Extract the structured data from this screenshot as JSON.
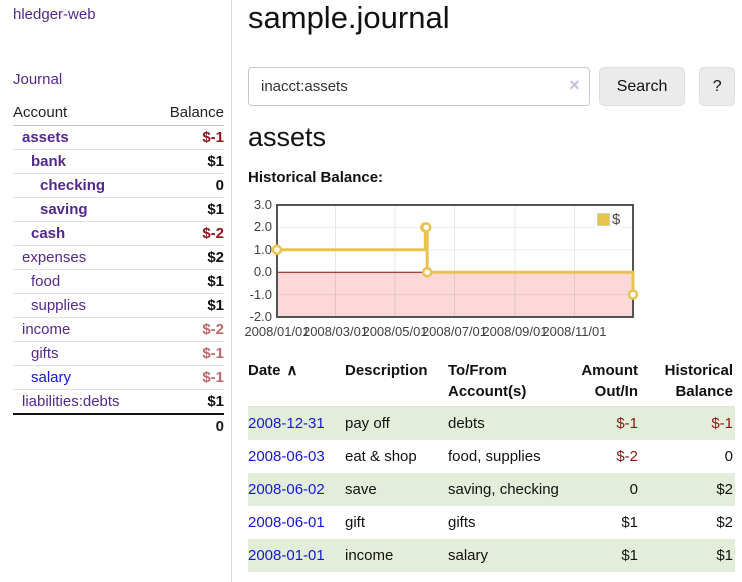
{
  "colors": {
    "link_purple": "#54288c",
    "link_blue": "#1515dd",
    "negative_strong": "#8b1518",
    "negative_soft": "#bb6969",
    "row_highlight_green": "#e2eeda",
    "series_gold": "#e8c350",
    "negative_region_pink": "#fcd8d8",
    "zero_line_red": "#8a1010",
    "chart_border_gray": "#545454"
  },
  "sidebar": {
    "brand": "hledger-web",
    "journal_link": "Journal",
    "accounts": {
      "col_account": "Account",
      "col_balance": "Balance",
      "rows": [
        {
          "name": "assets",
          "depth": 1,
          "bold": true,
          "blue": false,
          "balance": "$-1",
          "neg": "strong"
        },
        {
          "name": "bank",
          "depth": 2,
          "bold": true,
          "blue": false,
          "balance": "$1",
          "neg": null
        },
        {
          "name": "checking",
          "depth": 3,
          "bold": true,
          "blue": false,
          "balance": "0",
          "neg": null
        },
        {
          "name": "saving",
          "depth": 3,
          "bold": true,
          "blue": false,
          "balance": "$1",
          "neg": null
        },
        {
          "name": "cash",
          "depth": 2,
          "bold": true,
          "blue": false,
          "balance": "$-2",
          "neg": "strong"
        },
        {
          "name": "expenses",
          "depth": 1,
          "bold": false,
          "blue": false,
          "balance": "$2",
          "neg": null
        },
        {
          "name": "food",
          "depth": 2,
          "bold": false,
          "blue": false,
          "balance": "$1",
          "neg": null
        },
        {
          "name": "supplies",
          "depth": 2,
          "bold": false,
          "blue": false,
          "balance": "$1",
          "neg": null
        },
        {
          "name": "income",
          "depth": 1,
          "bold": false,
          "blue": false,
          "balance": "$-2",
          "neg": "soft"
        },
        {
          "name": "gifts",
          "depth": 2,
          "bold": false,
          "blue": false,
          "balance": "$-1",
          "neg": "soft"
        },
        {
          "name": "salary",
          "depth": 2,
          "bold": false,
          "blue": true,
          "balance": "$-1",
          "neg": "soft"
        },
        {
          "name": "liabilities:debts",
          "depth": 1,
          "bold": false,
          "blue": false,
          "balance": "$1",
          "neg": null
        }
      ],
      "total": "0"
    }
  },
  "main": {
    "title": "sample.journal",
    "search": {
      "value": "inacct:assets",
      "clear_icon": "×",
      "search_button": "Search",
      "help_button": "?"
    },
    "account_heading": "assets",
    "chart_title": "Historical Balance:"
  },
  "chart_data": {
    "type": "line",
    "title": "Historical Balance:",
    "x_start": "2008-01-01",
    "x_end": "2008-12-31",
    "x_ticks": [
      "2008/01/01",
      "2008/03/01",
      "2008/05/01",
      "2008/07/01",
      "2008/09/01",
      "2008/11/01"
    ],
    "y_ticks": [
      "3.0",
      "2.0",
      "1.0",
      "0.0",
      "-1.0",
      "-2.0"
    ],
    "ylim": [
      -2,
      3
    ],
    "grid": true,
    "step": "post",
    "series": [
      {
        "name": "$",
        "color": "#e8c350",
        "points": [
          [
            "2008-01-01",
            1
          ],
          [
            "2008-06-01",
            2
          ],
          [
            "2008-06-02",
            2
          ],
          [
            "2008-06-03",
            0
          ],
          [
            "2008-12-31",
            -1
          ]
        ]
      }
    ],
    "negative_fill": "#fcd8d8",
    "zero_line_color": "#8a1010",
    "legend": {
      "label": "$",
      "position": "top-right"
    }
  },
  "register": {
    "headers": {
      "date": "Date",
      "sort_asc": "∧",
      "description": "Description",
      "tofrom": "To/From Account(s)",
      "amount": "Amount Out/In",
      "balance": "Historical Balance"
    },
    "rows": [
      {
        "date": "2008-12-31",
        "description": "pay off",
        "accounts": "debts",
        "amount": "$-1",
        "amount_neg": true,
        "balance": "$-1",
        "balance_neg": true,
        "highlight": true
      },
      {
        "date": "2008-06-03",
        "description": "eat & shop",
        "accounts": "food, supplies",
        "amount": "$-2",
        "amount_neg": true,
        "balance": "0",
        "balance_neg": false,
        "highlight": false
      },
      {
        "date": "2008-06-02",
        "description": "save",
        "accounts": "saving, checking",
        "amount": "0",
        "amount_neg": false,
        "balance": "$2",
        "balance_neg": false,
        "highlight": true
      },
      {
        "date": "2008-06-01",
        "description": "gift",
        "accounts": "gifts",
        "amount": "$1",
        "amount_neg": false,
        "balance": "$2",
        "balance_neg": false,
        "highlight": false
      },
      {
        "date": "2008-01-01",
        "description": "income",
        "accounts": "salary",
        "amount": "$1",
        "amount_neg": false,
        "balance": "$1",
        "balance_neg": false,
        "highlight": true
      }
    ]
  }
}
